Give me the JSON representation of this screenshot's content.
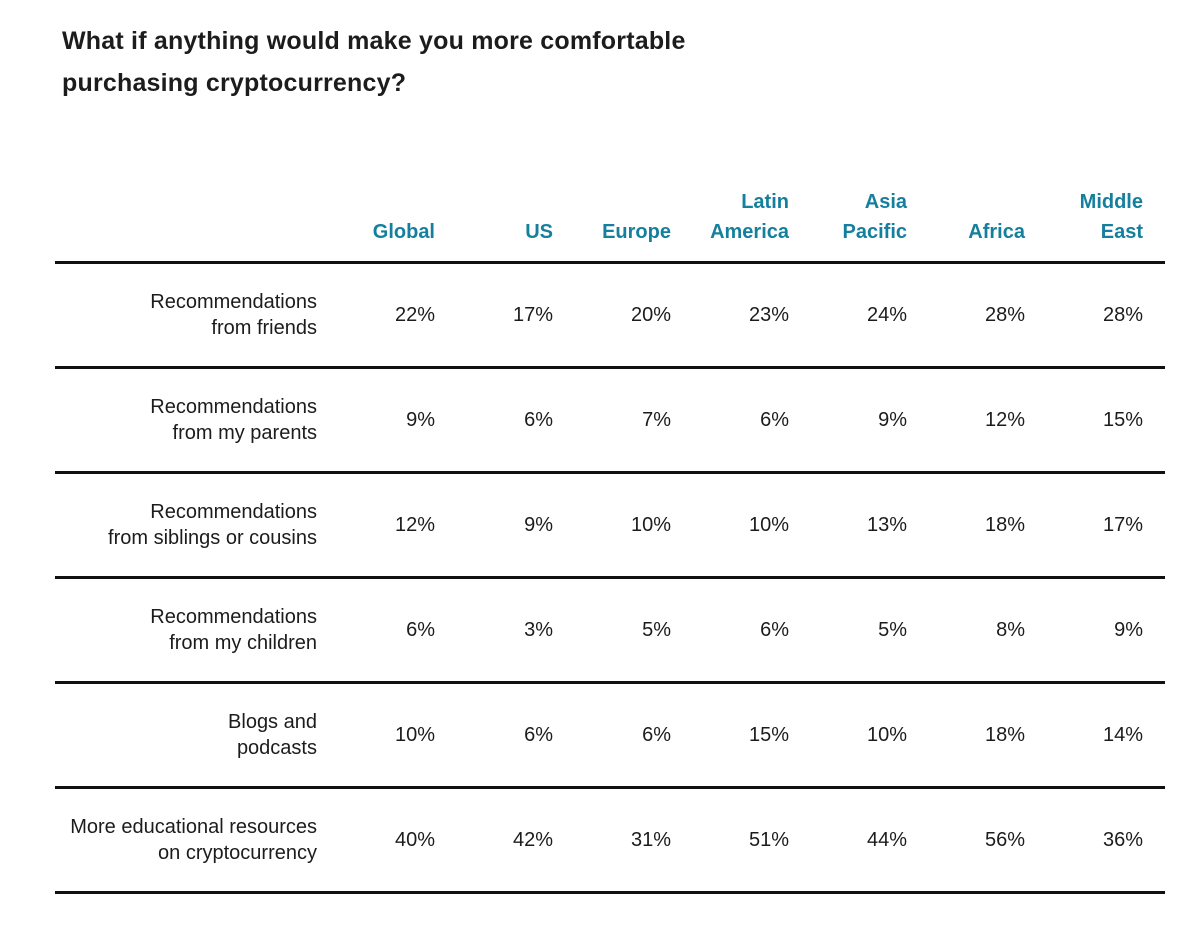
{
  "title": {
    "line1": "What if anything would make you more comfortable",
    "line2": "purchasing cryptocurrency?"
  },
  "colors": {
    "accent_teal": "#157f9e",
    "text": "#1c1c1c",
    "rule": "#111111",
    "background": "#ffffff"
  },
  "table": {
    "headers": [
      [
        "Global"
      ],
      [
        "US"
      ],
      [
        "Europe"
      ],
      [
        "Latin",
        "America"
      ],
      [
        "Asia",
        "Pacific"
      ],
      [
        "Africa"
      ],
      [
        "Middle",
        "East"
      ]
    ],
    "rows": [
      {
        "label": [
          "Recommendations",
          "from friends"
        ],
        "values": [
          "22%",
          "17%",
          "20%",
          "23%",
          "24%",
          "28%",
          "28%"
        ]
      },
      {
        "label": [
          "Recommendations",
          "from my parents"
        ],
        "values": [
          "9%",
          "6%",
          "7%",
          "6%",
          "9%",
          "12%",
          "15%"
        ]
      },
      {
        "label": [
          "Recommendations",
          "from siblings or cousins"
        ],
        "values": [
          "12%",
          "9%",
          "10%",
          "10%",
          "13%",
          "18%",
          "17%"
        ]
      },
      {
        "label": [
          "Recommendations",
          "from my children"
        ],
        "values": [
          "6%",
          "3%",
          "5%",
          "6%",
          "5%",
          "8%",
          "9%"
        ]
      },
      {
        "label": [
          "Blogs and",
          "podcasts"
        ],
        "values": [
          "10%",
          "6%",
          "6%",
          "15%",
          "10%",
          "18%",
          "14%"
        ]
      },
      {
        "label": [
          "More educational resources",
          "on cryptocurrency"
        ],
        "values": [
          "40%",
          "42%",
          "31%",
          "51%",
          "44%",
          "56%",
          "36%"
        ]
      }
    ]
  },
  "chart_data": {
    "type": "table",
    "title": "What if anything would make you more comfortable purchasing cryptocurrency?",
    "unit": "percent",
    "columns": [
      "Global",
      "US",
      "Europe",
      "Latin America",
      "Asia Pacific",
      "Africa",
      "Middle East"
    ],
    "rows": [
      {
        "label": "Recommendations from friends",
        "values_pct": [
          22,
          17,
          20,
          23,
          24,
          28,
          28
        ]
      },
      {
        "label": "Recommendations from my parents",
        "values_pct": [
          9,
          6,
          7,
          6,
          9,
          12,
          15
        ]
      },
      {
        "label": "Recommendations from siblings or cousins",
        "values_pct": [
          12,
          9,
          10,
          10,
          13,
          18,
          17
        ]
      },
      {
        "label": "Recommendations from my children",
        "values_pct": [
          6,
          3,
          5,
          6,
          5,
          8,
          9
        ]
      },
      {
        "label": "Blogs and podcasts",
        "values_pct": [
          10,
          6,
          6,
          15,
          10,
          18,
          14
        ]
      },
      {
        "label": "More educational resources on cryptocurrency",
        "values_pct": [
          40,
          42,
          31,
          51,
          44,
          56,
          36
        ]
      }
    ]
  }
}
